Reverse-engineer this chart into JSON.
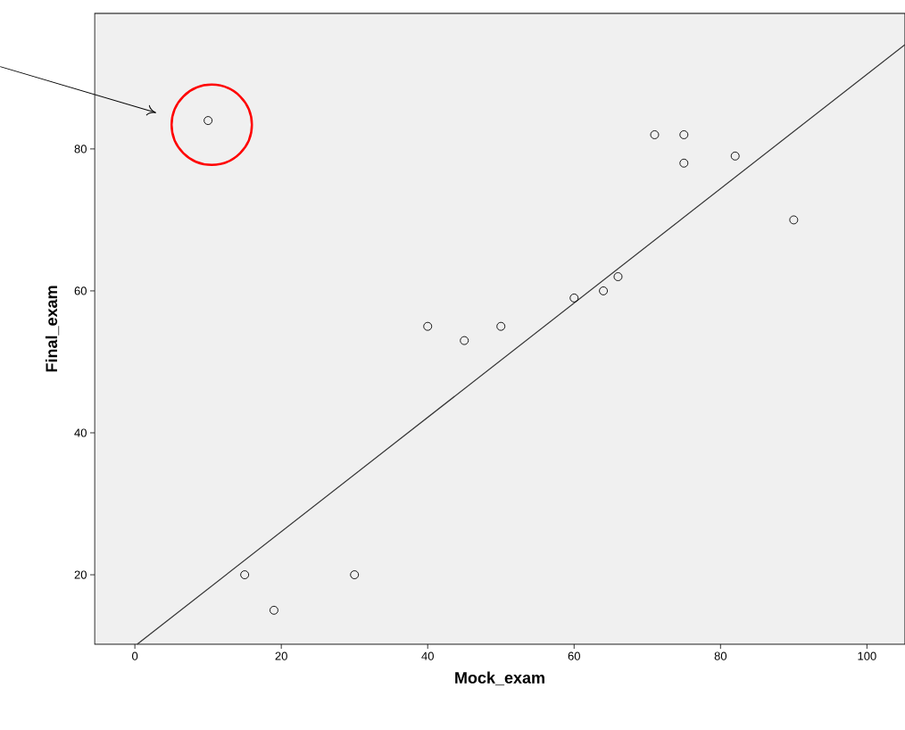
{
  "chart_data": {
    "type": "scatter",
    "xlabel": "Mock_exam",
    "ylabel": "Final_exam",
    "xlim": [
      -5.5,
      105.2
    ],
    "ylim": [
      10.2,
      99.1
    ],
    "xticks": [
      0,
      20,
      40,
      60,
      80,
      100
    ],
    "yticks": [
      20,
      40,
      60,
      80
    ],
    "grid": false,
    "marker": "circle",
    "series": [
      {
        "color": "#000000",
        "x": [
          10,
          15,
          19,
          30,
          40,
          45,
          50,
          60,
          64,
          66,
          71,
          75,
          75,
          82,
          90
        ],
        "values": [
          84,
          20,
          15,
          20,
          55,
          53,
          55,
          59,
          60,
          62,
          82,
          82,
          78,
          79,
          70
        ]
      },
      {
        "type": "line",
        "marker": "none",
        "color": "#333333",
        "x": [
          0.3,
          105.2
        ],
        "values": [
          10.2,
          94.7
        ]
      }
    ]
  }
}
